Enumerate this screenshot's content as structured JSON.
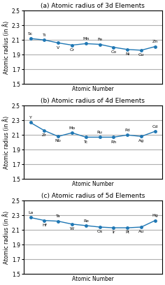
{
  "chart_data": [
    {
      "type": "line",
      "title": "(a) Atomic radius of 3d Elements",
      "xlabel": "Atomic Number",
      "ylabel": "Atomic radius (in Å)",
      "x": [
        1,
        2,
        3,
        4,
        5,
        6,
        7,
        8,
        9,
        10
      ],
      "values": [
        2.12,
        2.1,
        2.06,
        2.03,
        2.05,
        2.04,
        2.0,
        1.97,
        1.96,
        2.01
      ],
      "annotations": [
        "Sc",
        "Ti",
        "V",
        "Cr",
        "Mn",
        "Fe",
        "Co",
        "Ni",
        "Cu",
        "Zn"
      ],
      "xlim": [
        0.5,
        10.5
      ],
      "ylim": [
        1.5,
        2.5
      ],
      "yticks": [
        1.5,
        1.7,
        1.9,
        2.1,
        2.3,
        2.5
      ],
      "grid": true,
      "tick_labels": "y",
      "marker": "o"
    },
    {
      "type": "line",
      "title": "(b) Atomic radius of 4d Elements",
      "xlabel": "Atomic Number",
      "ylabel": "Atomic radius (in Å)",
      "x": [
        1,
        2,
        3,
        4,
        5,
        6,
        7,
        8,
        9,
        10
      ],
      "values": [
        2.27,
        2.16,
        2.08,
        2.13,
        2.07,
        2.07,
        2.07,
        2.1,
        2.08,
        2.15
      ],
      "annotations": [
        "Y",
        "Zr",
        "Nb",
        "Mo",
        "Tc",
        "Ru",
        "Rh",
        "Pd",
        "Ag",
        "Cd"
      ],
      "xlim": [
        0.5,
        10.5
      ],
      "ylim": [
        1.5,
        2.5
      ],
      "yticks": [
        1.5,
        1.7,
        1.9,
        2.1,
        2.3,
        2.5
      ],
      "grid": true,
      "tick_labels": "y",
      "marker": "o"
    },
    {
      "type": "line",
      "title": "(c) Atomic radius of 5d Elements",
      "xlabel": "Atomic Number",
      "ylabel": "Atomic radius (in Å)",
      "x": [
        1,
        2,
        3,
        4,
        5,
        6,
        7,
        8,
        9,
        10
      ],
      "values": [
        2.27,
        2.23,
        2.22,
        2.18,
        2.16,
        2.14,
        2.13,
        2.13,
        2.14,
        2.23
      ],
      "annotations": [
        "La",
        "Hf",
        "Ta",
        "W",
        "Re",
        "Os",
        "Ir",
        "Pt",
        "Au",
        "Hg"
      ],
      "xlim": [
        0.5,
        10.5
      ],
      "ylim": [
        1.5,
        2.5
      ],
      "yticks": [
        1.5,
        1.7,
        1.9,
        2.1,
        2.3,
        2.5
      ],
      "grid": true,
      "tick_labels": "y",
      "marker": "o"
    }
  ]
}
